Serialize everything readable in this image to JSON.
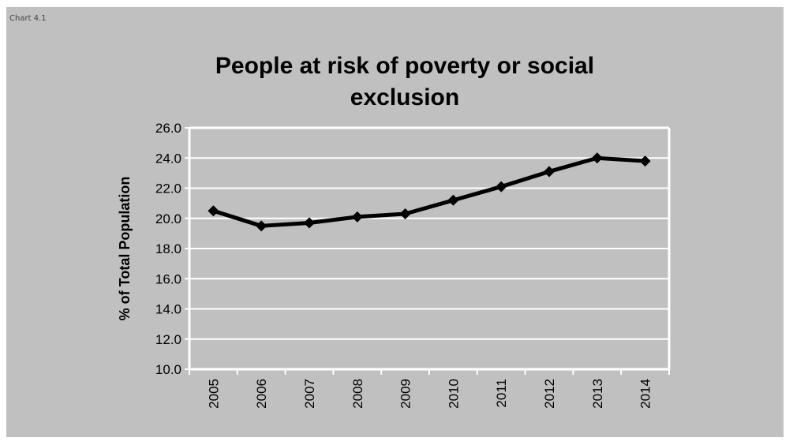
{
  "caption": "Chart 4.1",
  "colors": {
    "background": "#c0c0c0",
    "plot_area": "#c0c0c0",
    "gridline": "#ffffff",
    "series_line": "#000000"
  },
  "chart_data": {
    "type": "line",
    "title": "People at risk of poverty or social exclusion",
    "title_lines": [
      "People at risk of poverty or social",
      "exclusion"
    ],
    "xlabel": "",
    "ylabel": "% of Total Population",
    "ylim": [
      10.0,
      26.0
    ],
    "ytick_step": 2.0,
    "ytick_labels": [
      "10.0",
      "12.0",
      "14.0",
      "16.0",
      "18.0",
      "20.0",
      "22.0",
      "24.0",
      "26.0"
    ],
    "grid": true,
    "legend": "none",
    "marker": "diamond",
    "categories": [
      "2005",
      "2006",
      "2007",
      "2008",
      "2009",
      "2010",
      "2011",
      "2012",
      "2013",
      "2014"
    ],
    "series": [
      {
        "values": [
          20.5,
          19.5,
          19.7,
          20.1,
          20.3,
          21.2,
          22.1,
          23.1,
          24.0,
          23.8
        ]
      }
    ]
  }
}
